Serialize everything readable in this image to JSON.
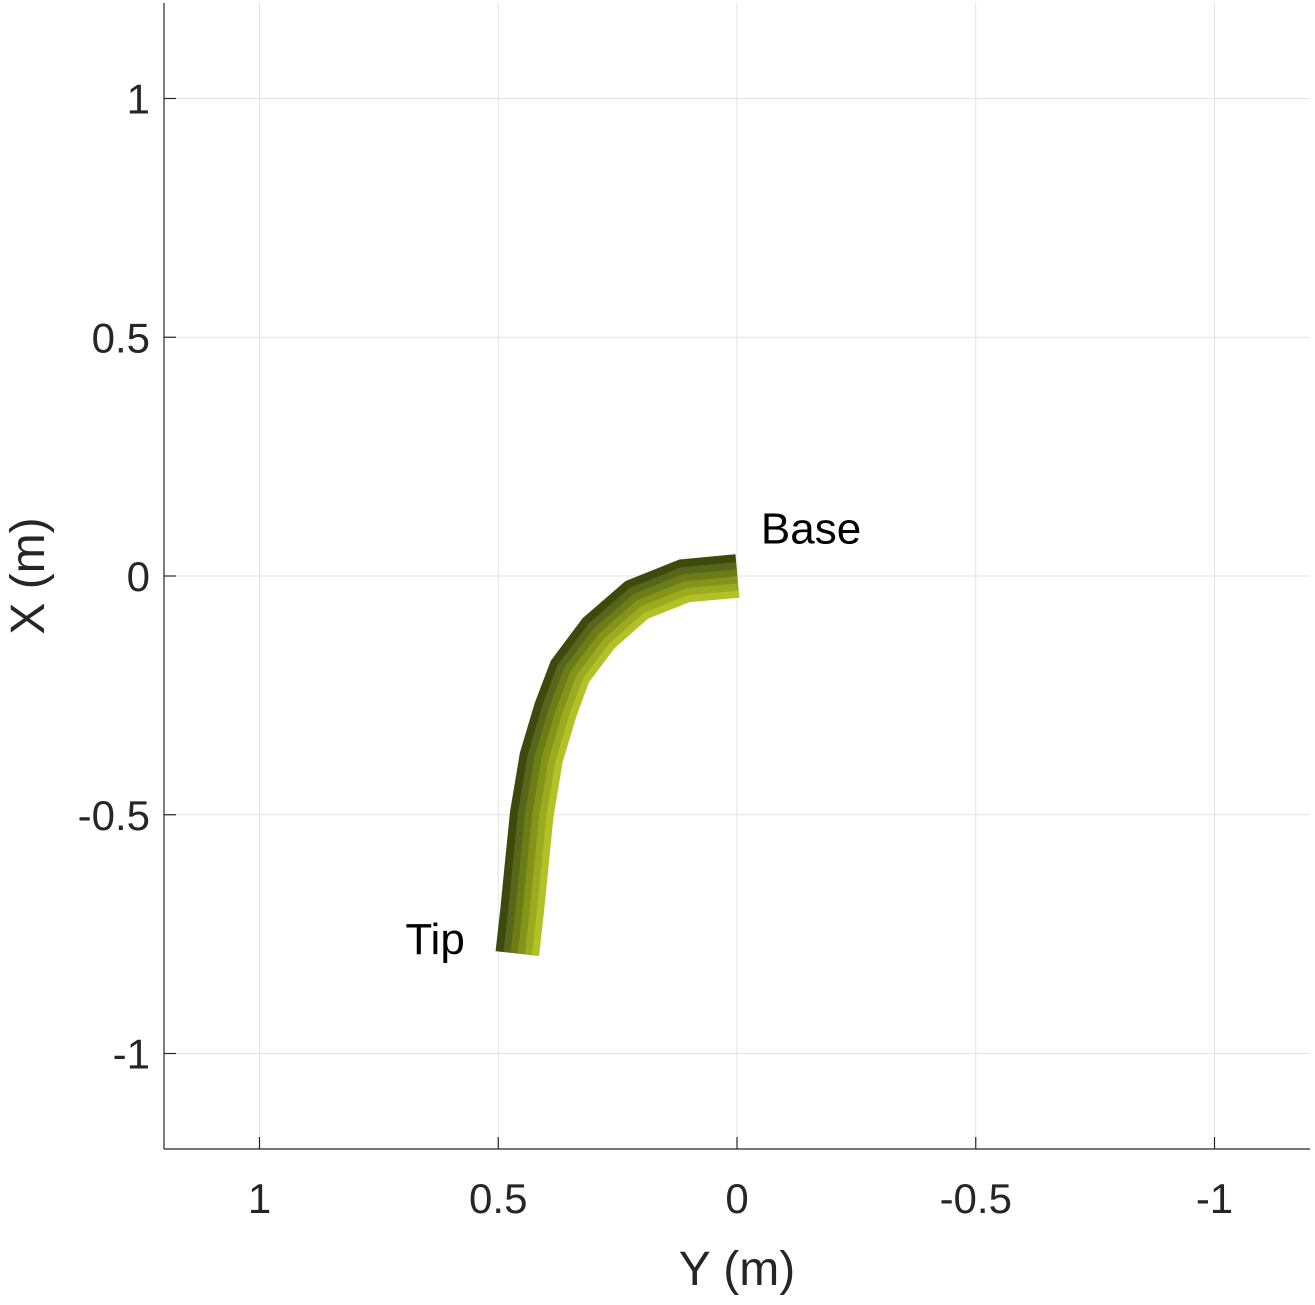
{
  "chart_data": {
    "type": "line",
    "title": "",
    "xlabel": "Y (m)",
    "ylabel": "X (m)",
    "x_axis_reversed": true,
    "xlim": [
      1.2,
      -1.2
    ],
    "ylim": [
      -1.2,
      1.2
    ],
    "x_ticks": [
      1,
      0.5,
      0,
      -0.5,
      -1
    ],
    "x_tick_labels": [
      "1",
      "0.5",
      "0",
      "-0.5",
      "-1"
    ],
    "y_ticks": [
      1,
      0.5,
      0,
      -0.5,
      -1
    ],
    "y_tick_labels": [
      "1",
      "0.5",
      "0",
      "-0.5",
      "-1"
    ],
    "grid": true,
    "series": [
      {
        "style": "tube",
        "points": [
          {
            "y": 0.0,
            "x": 0.0
          },
          {
            "y": 0.11,
            "x": -0.01
          },
          {
            "y": 0.21,
            "x": -0.05
          },
          {
            "y": 0.29,
            "x": -0.12
          },
          {
            "y": 0.35,
            "x": -0.2
          },
          {
            "y": 0.38,
            "x": -0.28
          },
          {
            "y": 0.41,
            "x": -0.38
          },
          {
            "y": 0.43,
            "x": -0.5
          },
          {
            "y": 0.44,
            "x": -0.6
          },
          {
            "y": 0.45,
            "x": -0.7
          },
          {
            "y": 0.46,
            "x": -0.79
          }
        ],
        "radius": 0.045,
        "color_light": "#b2c226",
        "color_mid": "#6c7d16",
        "color_dark": "#3d4a0c"
      }
    ],
    "annotations": [
      {
        "text": "Base",
        "y": -0.05,
        "x": 0.1
      },
      {
        "text": "Tip",
        "y": 0.57,
        "x": -0.76
      }
    ]
  }
}
